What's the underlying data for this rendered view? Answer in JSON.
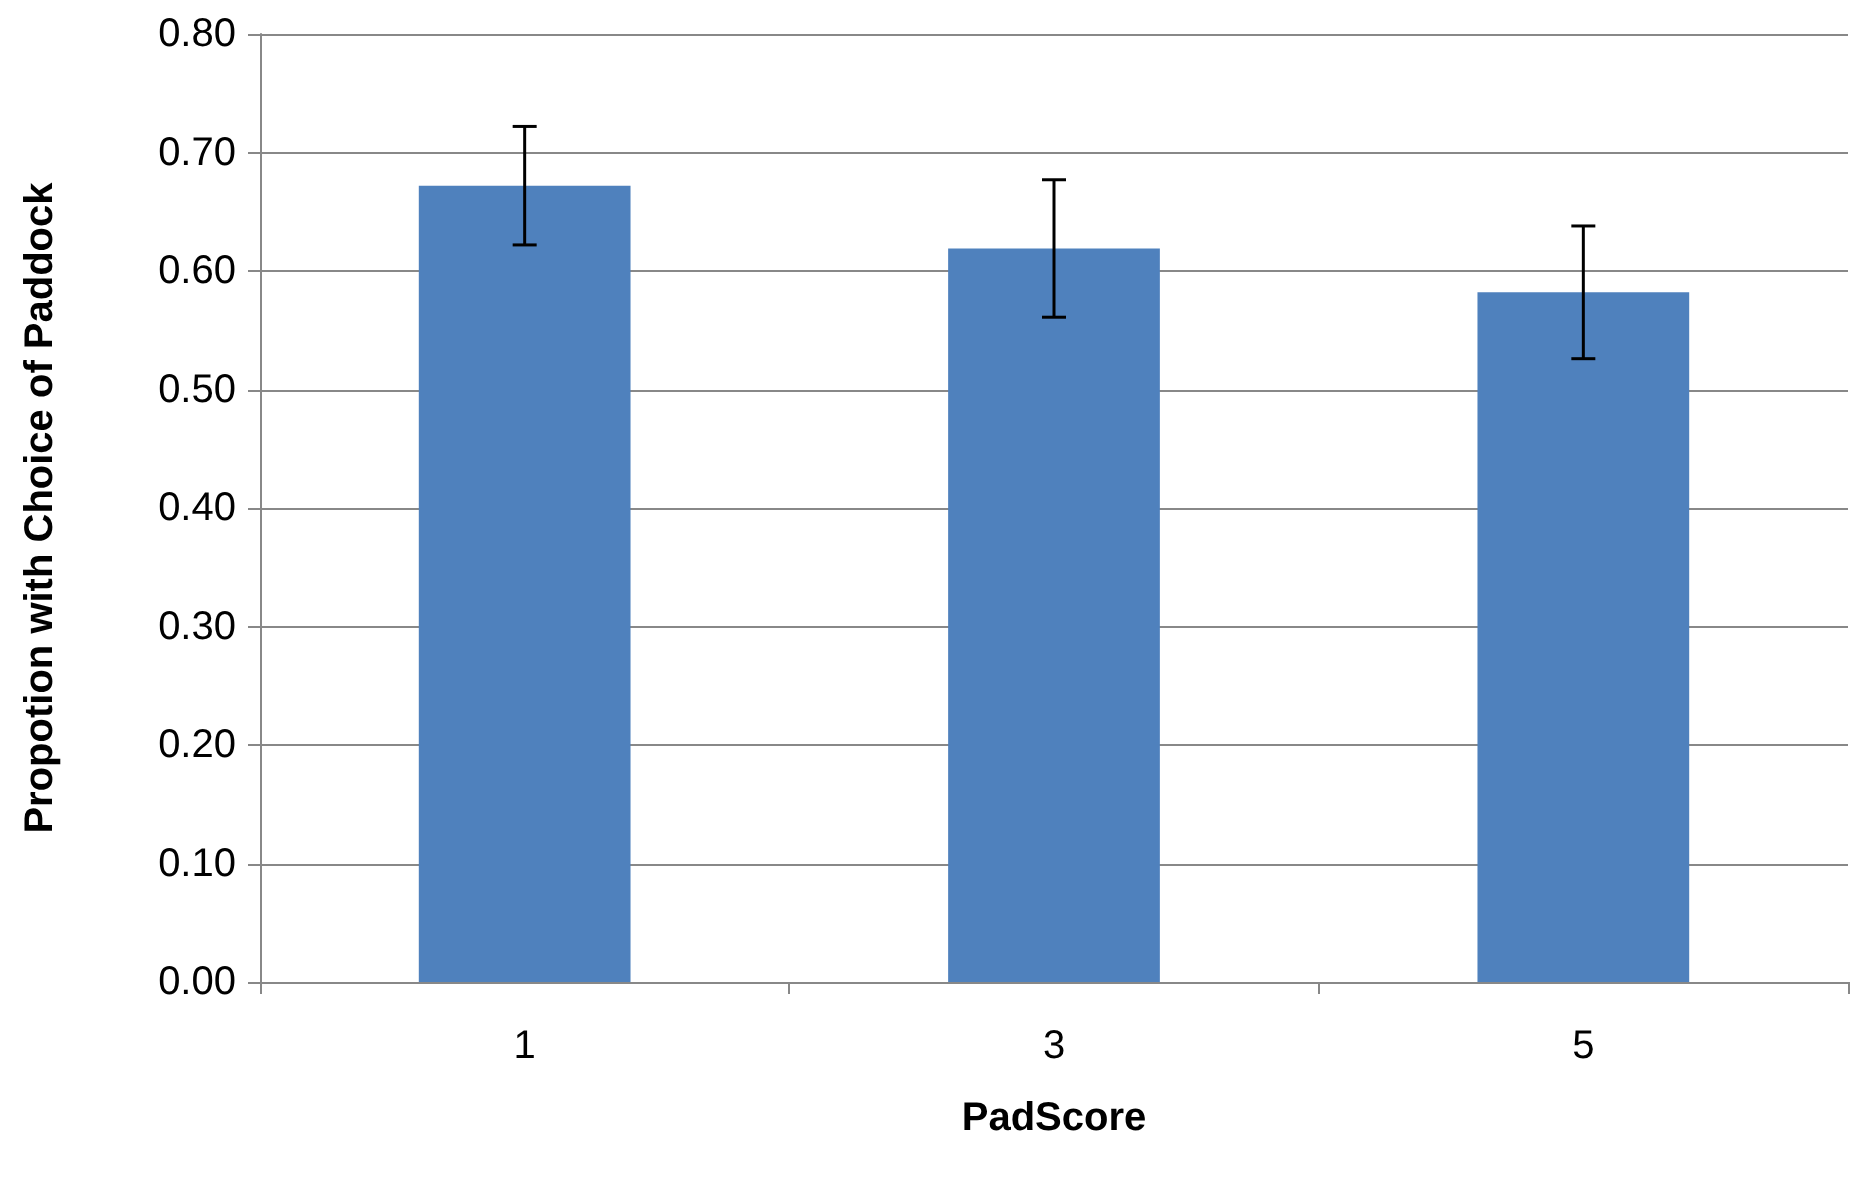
{
  "chart_data": {
    "type": "bar",
    "xlabel": "PadScore",
    "ylabel": "Propotion with Choice of Paddock",
    "categories": [
      "1",
      "3",
      "5"
    ],
    "values": [
      0.672,
      0.619,
      0.582
    ],
    "errors": [
      0.05,
      0.058,
      0.056
    ],
    "color": "#4f81bd",
    "ylim": [
      0,
      0.8
    ],
    "yticks": [
      {
        "value": 0,
        "label": "0.00"
      },
      {
        "value": 0.1,
        "label": "0.10"
      },
      {
        "value": 0.2,
        "label": "0.20"
      },
      {
        "value": 0.3,
        "label": "0.30"
      },
      {
        "value": 0.4,
        "label": "0.40"
      },
      {
        "value": 0.5,
        "label": "0.50"
      },
      {
        "value": 0.6,
        "label": "0.60"
      },
      {
        "value": 0.7,
        "label": "0.70"
      },
      {
        "value": 0.8,
        "label": "0.80"
      }
    ],
    "grid": "y"
  }
}
